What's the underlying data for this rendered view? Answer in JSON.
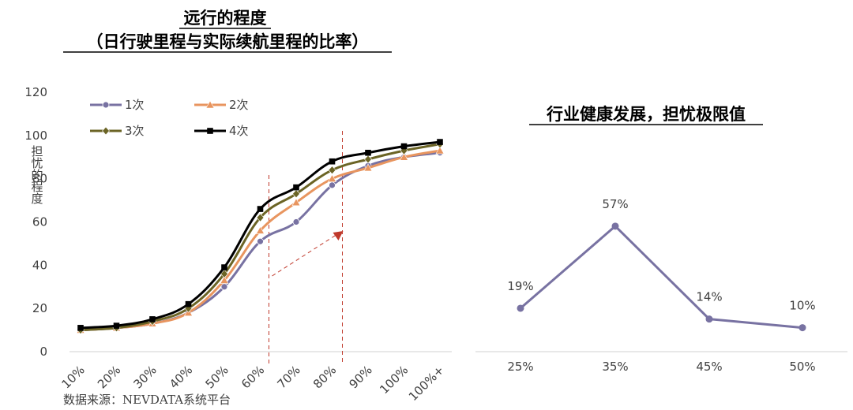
{
  "source_note": "数据来源：NEVDATA系统平台",
  "chart_data": [
    {
      "type": "line",
      "title": "远行的程度",
      "subtitle": "（日行驶里程与实际续航里程的比率）",
      "ylabel": "担忧的程度",
      "xlabel": "",
      "ylim": [
        0,
        120
      ],
      "yticks": [
        0,
        20,
        40,
        60,
        80,
        100,
        120
      ],
      "categories": [
        "10%",
        "20%",
        "30%",
        "40%",
        "50%",
        "60%",
        "70%",
        "80%",
        "90%",
        "100%",
        "100%+"
      ],
      "legend_position": "top-left",
      "series": [
        {
          "name": "1次",
          "color": "#7872a2",
          "marker": "circle",
          "values": [
            10,
            11,
            13,
            18,
            30,
            51,
            60,
            77,
            86,
            90,
            92
          ]
        },
        {
          "name": "2次",
          "color": "#e8955f",
          "marker": "triangle",
          "values": [
            10,
            11,
            13,
            18,
            33,
            56,
            69,
            80,
            85,
            90,
            93
          ]
        },
        {
          "name": "3次",
          "color": "#6b6425",
          "marker": "diamond",
          "values": [
            10,
            11,
            14,
            20,
            36,
            62,
            73,
            84,
            89,
            93,
            96
          ]
        },
        {
          "name": "4次",
          "color": "#000000",
          "marker": "square",
          "values": [
            11,
            12,
            15,
            22,
            39,
            66,
            76,
            88,
            92,
            95,
            97
          ]
        }
      ],
      "annotations": {
        "dashed_lines_at": [
          "60%",
          "80%"
        ],
        "arrow_color": "#c0392b"
      }
    },
    {
      "type": "line",
      "title": "行业健康发展，担忧极限值",
      "categories": [
        "25%",
        "35%",
        "45%",
        "50%"
      ],
      "series": [
        {
          "color": "#7872a2",
          "values": [
            19,
            57,
            14,
            10
          ],
          "data_labels": [
            "19%",
            "57%",
            "14%",
            "10%"
          ]
        }
      ]
    }
  ]
}
